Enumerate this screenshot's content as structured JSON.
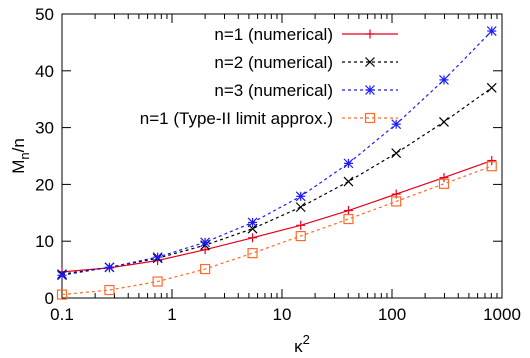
{
  "chart_data": {
    "type": "line",
    "xscale": "log",
    "xlim": [
      0.1,
      1000
    ],
    "ylim": [
      0,
      50
    ],
    "xticks": [
      0.1,
      1,
      10,
      100,
      1000
    ],
    "xtick_labels": [
      "0.1",
      "1",
      "10",
      "100",
      "1000"
    ],
    "yticks": [
      0,
      10,
      20,
      30,
      40,
      50
    ],
    "ytick_labels": [
      "0",
      "10",
      "20",
      "30",
      "40",
      "50"
    ],
    "xlabel": "κ",
    "xlabel_sup": "2",
    "ylabel": "M",
    "ylabel_sub": "n",
    "ylabel_suffix": "/n",
    "grid": false,
    "legend_position": "top-right",
    "series": [
      {
        "name": "n=1 (numerical)",
        "color": "#e8001c",
        "marker": "plus",
        "line": "solid",
        "x": [
          0.1,
          0.27,
          0.74,
          2.0,
          5.4,
          14.8,
          40.2,
          109.2,
          296.8,
          806.8
        ],
        "y": [
          4.6,
          5.3,
          6.6,
          8.5,
          10.6,
          12.8,
          15.4,
          18.3,
          21.2,
          24.2
        ]
      },
      {
        "name": "n=2 (numerical)",
        "color": "#000000",
        "marker": "cross",
        "line": "dashed",
        "x": [
          0.1,
          0.27,
          0.74,
          2.0,
          5.4,
          14.8,
          40.2,
          109.2,
          296.8,
          806.8
        ],
        "y": [
          4.2,
          5.4,
          7.0,
          9.3,
          12.2,
          16.0,
          20.5,
          25.5,
          31.0,
          37.0
        ]
      },
      {
        "name": "n=3 (numerical)",
        "color": "#1a1aff",
        "marker": "star",
        "line": "dashed",
        "x": [
          0.1,
          0.27,
          0.74,
          2.0,
          5.4,
          14.8,
          40.2,
          109.2,
          296.8,
          806.8
        ],
        "y": [
          4.0,
          5.4,
          7.2,
          9.8,
          13.3,
          17.9,
          23.7,
          30.6,
          38.4,
          47.0
        ]
      },
      {
        "name": "n=1 (Type-II limit approx.)",
        "color": "#ff6a2a",
        "marker": "square",
        "line": "dashed",
        "x": [
          0.1,
          0.27,
          0.74,
          2.0,
          5.4,
          14.8,
          40.2,
          109.2,
          296.8,
          806.8
        ],
        "y": [
          0.6,
          1.4,
          2.9,
          5.1,
          7.9,
          10.9,
          13.9,
          17.0,
          20.1,
          23.2
        ]
      }
    ]
  }
}
